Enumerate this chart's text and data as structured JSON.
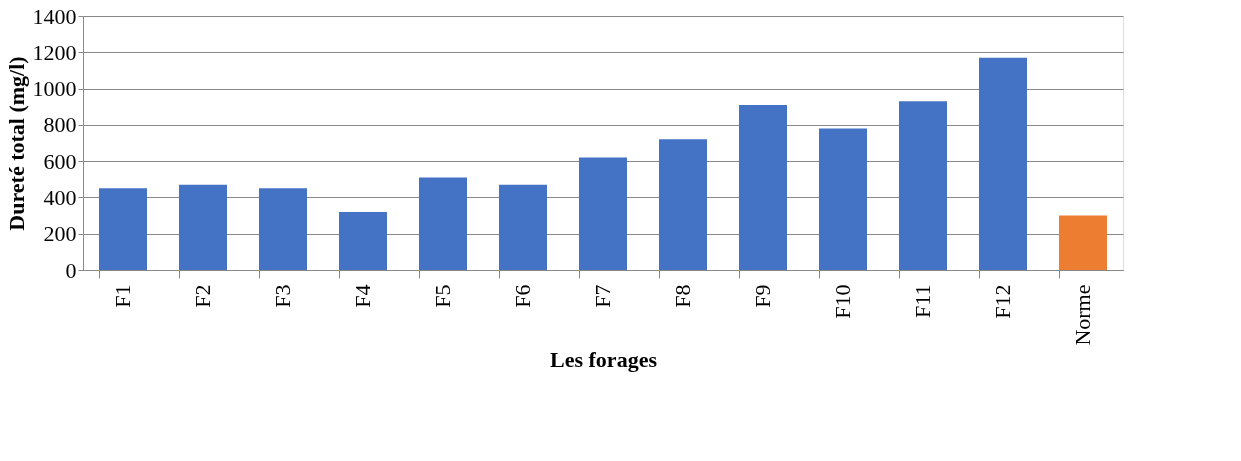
{
  "chart_data": {
    "type": "bar",
    "xlabel": "Les forages",
    "ylabel": "Dureté total (mg/l)",
    "categories": [
      "F1",
      "F2",
      "F3",
      "F4",
      "F5",
      "F6",
      "F7",
      "F8",
      "F9",
      "F10",
      "F11",
      "F12",
      "Norme"
    ],
    "values": [
      450,
      470,
      450,
      320,
      510,
      470,
      620,
      720,
      910,
      780,
      930,
      1170,
      300
    ],
    "colors": [
      "#4472c4",
      "#4472c4",
      "#4472c4",
      "#4472c4",
      "#4472c4",
      "#4472c4",
      "#4472c4",
      "#4472c4",
      "#4472c4",
      "#4472c4",
      "#4472c4",
      "#4472c4",
      "#ed7d31"
    ],
    "ylim": [
      0,
      1400
    ],
    "yticks": [
      0,
      200,
      400,
      600,
      800,
      1000,
      1200,
      1400
    ],
    "grid": "y",
    "legend": false
  }
}
